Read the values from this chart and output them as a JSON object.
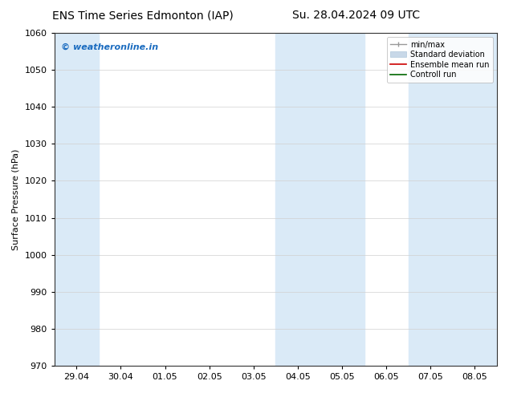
{
  "title_left": "ENS Time Series Edmonton (IAP)",
  "title_right": "Su. 28.04.2024 09 UTC",
  "ylabel": "Surface Pressure (hPa)",
  "ylim": [
    970,
    1060
  ],
  "yticks": [
    970,
    980,
    990,
    1000,
    1010,
    1020,
    1030,
    1040,
    1050,
    1060
  ],
  "xtick_labels": [
    "29.04",
    "30.04",
    "01.05",
    "02.05",
    "03.05",
    "04.05",
    "05.05",
    "06.05",
    "07.05",
    "08.05"
  ],
  "background_color": "#ffffff",
  "plot_bg_color": "#ffffff",
  "shaded_band_color": "#daeaf7",
  "watermark_text": "© weatheronline.in",
  "watermark_color": "#1a6bbf",
  "shaded_regions": [
    [
      "2024-04-28",
      "2024-04-30"
    ],
    [
      "2024-05-04",
      "2024-05-06"
    ],
    [
      "2024-05-07",
      "2024-05-09"
    ]
  ],
  "xlim_start": "2024-04-29",
  "xlim_end": "2024-05-09",
  "title_fontsize": 10,
  "axis_label_fontsize": 8,
  "tick_fontsize": 8
}
